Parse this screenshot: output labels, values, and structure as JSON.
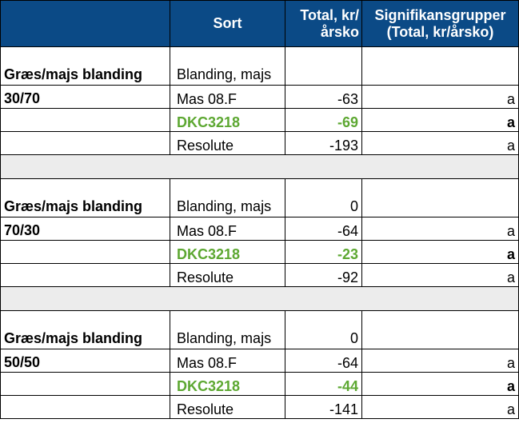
{
  "headers": {
    "group": "",
    "sort": "Sort",
    "total": "Total, kr/årsko",
    "sig": "Signifikansgrupper (Total, kr/årsko)"
  },
  "colors": {
    "header_bg": "#0b4a86",
    "highlight": "#5da832",
    "separator": "#ececec"
  },
  "groups": [
    {
      "label_line1": "Græs/majs blanding",
      "label_line2": "30/70",
      "rows": [
        {
          "sort": "Blanding, majs",
          "total": "",
          "sig": ""
        },
        {
          "sort": "Mas 08.F",
          "total": "-63",
          "sig": "a"
        },
        {
          "sort": "DKC3218",
          "total": "-69",
          "sig": "a"
        },
        {
          "sort": "Resolute",
          "total": "-193",
          "sig": "a"
        }
      ]
    },
    {
      "label_line1": "Græs/majs blanding",
      "label_line2": "70/30",
      "rows": [
        {
          "sort": "Blanding, majs",
          "total": "0",
          "sig": ""
        },
        {
          "sort": "Mas 08.F",
          "total": "-64",
          "sig": "a"
        },
        {
          "sort": "DKC3218",
          "total": "-23",
          "sig": "a"
        },
        {
          "sort": "Resolute",
          "total": "-92",
          "sig": "a"
        }
      ]
    },
    {
      "label_line1": "Græs/majs blanding",
      "label_line2": "50/50",
      "rows": [
        {
          "sort": "Blanding, majs",
          "total": "0",
          "sig": ""
        },
        {
          "sort": "Mas 08.F",
          "total": "-64",
          "sig": "a"
        },
        {
          "sort": "DKC3218",
          "total": "-44",
          "sig": "a"
        },
        {
          "sort": "Resolute",
          "total": "-141",
          "sig": "a"
        }
      ]
    }
  ]
}
